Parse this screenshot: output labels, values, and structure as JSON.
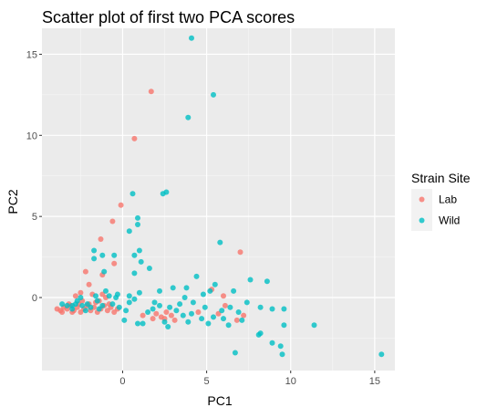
{
  "chart_data": {
    "type": "scatter",
    "title": "Scatter plot of first two PCA scores",
    "xlabel": "PC1",
    "ylabel": "PC2",
    "xlim": [
      -4.8,
      16.2
    ],
    "ylim": [
      -4.5,
      16.6
    ],
    "x_ticks": [
      0,
      5,
      10,
      15
    ],
    "x_tick_labels": [
      "0",
      "5",
      "10",
      "15"
    ],
    "y_ticks": [
      0,
      5,
      10,
      15
    ],
    "y_tick_labels": [
      "0",
      "5",
      "10",
      "15"
    ],
    "grid": true,
    "legend": {
      "title": "Strain Site",
      "placement": "right"
    },
    "series": [
      {
        "name": "Lab",
        "color": "#F8766D",
        "points": [
          [
            1.7,
            12.7
          ],
          [
            0.7,
            9.8
          ],
          [
            -0.1,
            5.7
          ],
          [
            -0.6,
            4.7
          ],
          [
            -1.3,
            3.6
          ],
          [
            -0.5,
            2.1
          ],
          [
            -1.2,
            1.4
          ],
          [
            -2.2,
            1.6
          ],
          [
            7.0,
            2.8
          ],
          [
            5.3,
            0.5
          ],
          [
            6.0,
            0.1
          ],
          [
            -2.0,
            0.8
          ],
          [
            -2.5,
            0.3
          ],
          [
            -1.8,
            0.2
          ],
          [
            -1.0,
            0.0
          ],
          [
            -3.9,
            -0.7
          ],
          [
            -3.7,
            -0.8
          ],
          [
            -3.5,
            -0.6
          ],
          [
            -3.3,
            -0.7
          ],
          [
            -3.1,
            -0.5
          ],
          [
            -2.9,
            -0.8
          ],
          [
            -2.7,
            -0.6
          ],
          [
            -2.5,
            -0.9
          ],
          [
            -2.3,
            -0.7
          ],
          [
            -2.1,
            -0.5
          ],
          [
            -1.9,
            -0.8
          ],
          [
            -1.7,
            -0.6
          ],
          [
            -1.5,
            -0.9
          ],
          [
            -1.3,
            -0.7
          ],
          [
            -1.1,
            -0.5
          ],
          [
            -0.9,
            -0.8
          ],
          [
            -0.7,
            -0.6
          ],
          [
            -0.5,
            -0.9
          ],
          [
            -0.3,
            -0.7
          ],
          [
            -3.6,
            -0.9
          ],
          [
            -3.0,
            -0.9
          ],
          [
            -2.6,
            -0.4
          ],
          [
            -2.0,
            -0.4
          ],
          [
            -1.6,
            -0.3
          ],
          [
            -0.8,
            -0.4
          ],
          [
            -3.2,
            -0.4
          ],
          [
            -2.4,
            -0.2
          ],
          [
            -1.4,
            -0.2
          ],
          [
            -2.8,
            0.1
          ],
          [
            -1.2,
            0.2
          ],
          [
            2.0,
            -1.0
          ],
          [
            2.3,
            -1.2
          ],
          [
            2.6,
            -0.9
          ],
          [
            2.9,
            -1.1
          ],
          [
            1.8,
            -1.3
          ],
          [
            5.7,
            -1.0
          ],
          [
            6.1,
            -0.5
          ],
          [
            7.2,
            -1.1
          ],
          [
            6.8,
            -1.4
          ],
          [
            1.2,
            -1.1
          ],
          [
            2.5,
            -1.3
          ],
          [
            4.5,
            -0.9
          ],
          [
            3.1,
            -1.4
          ]
        ]
      },
      {
        "name": "Wild",
        "color": "#00BFC4",
        "points": [
          [
            4.1,
            16.0
          ],
          [
            5.4,
            12.5
          ],
          [
            3.9,
            11.1
          ],
          [
            2.6,
            6.5
          ],
          [
            2.4,
            6.4
          ],
          [
            0.6,
            6.4
          ],
          [
            0.9,
            4.9
          ],
          [
            0.9,
            4.5
          ],
          [
            0.4,
            4.1
          ],
          [
            5.8,
            3.4
          ],
          [
            -1.7,
            2.9
          ],
          [
            1.0,
            2.9
          ],
          [
            -1.2,
            2.6
          ],
          [
            -1.7,
            2.4
          ],
          [
            -0.5,
            2.6
          ],
          [
            0.7,
            2.6
          ],
          [
            1.1,
            2.2
          ],
          [
            1.6,
            1.8
          ],
          [
            -1.1,
            1.6
          ],
          [
            0.7,
            1.5
          ],
          [
            1.0,
            0.3
          ],
          [
            2.2,
            0.4
          ],
          [
            3.0,
            0.6
          ],
          [
            3.8,
            0.6
          ],
          [
            4.4,
            1.3
          ],
          [
            4.8,
            0.2
          ],
          [
            5.2,
            0.4
          ],
          [
            5.5,
            0.8
          ],
          [
            6.6,
            0.4
          ],
          [
            7.6,
            1.1
          ],
          [
            8.6,
            1.0
          ],
          [
            8.9,
            -0.7
          ],
          [
            8.2,
            -0.6
          ],
          [
            9.6,
            -0.7
          ],
          [
            6.4,
            -0.6
          ],
          [
            6.9,
            -0.9
          ],
          [
            7.1,
            -1.4
          ],
          [
            8.2,
            -2.2
          ],
          [
            8.9,
            -2.8
          ],
          [
            9.4,
            -3.0
          ],
          [
            9.5,
            -3.5
          ],
          [
            8.1,
            -2.3
          ],
          [
            9.6,
            -1.7
          ],
          [
            11.4,
            -1.7
          ],
          [
            15.4,
            -3.5
          ],
          [
            6.7,
            -3.4
          ],
          [
            5.4,
            -1.2
          ],
          [
            6.3,
            -1.7
          ],
          [
            4.7,
            -1.3
          ],
          [
            4.1,
            -1.0
          ],
          [
            3.6,
            -1.1
          ],
          [
            3.4,
            -0.4
          ],
          [
            2.8,
            -0.6
          ],
          [
            1.5,
            -0.9
          ],
          [
            0.9,
            -1.6
          ],
          [
            1.2,
            -1.6
          ],
          [
            2.7,
            -1.8
          ],
          [
            2.5,
            -1.5
          ],
          [
            0.1,
            -1.4
          ],
          [
            -0.2,
            -0.6
          ],
          [
            0.4,
            -0.3
          ],
          [
            0.7,
            -0.1
          ],
          [
            0.4,
            0.1
          ],
          [
            -0.6,
            -0.4
          ],
          [
            -1.2,
            -0.5
          ],
          [
            -1.5,
            -0.2
          ],
          [
            -1.9,
            -0.6
          ],
          [
            -2.1,
            -0.4
          ],
          [
            -2.4,
            -0.5
          ],
          [
            -2.8,
            -0.4
          ],
          [
            -3.0,
            -0.5
          ],
          [
            -3.3,
            -0.5
          ],
          [
            -3.6,
            -0.4
          ],
          [
            -2.7,
            -0.2
          ],
          [
            -2.5,
            0.0
          ],
          [
            -1.6,
            0.1
          ],
          [
            -1.4,
            -0.7
          ],
          [
            -2.2,
            -0.8
          ],
          [
            -3.0,
            -0.7
          ],
          [
            -0.8,
            0.1
          ],
          [
            -1.0,
            0.4
          ],
          [
            -0.3,
            0.2
          ],
          [
            1.9,
            -0.3
          ],
          [
            2.2,
            -0.5
          ],
          [
            3.2,
            -0.8
          ],
          [
            4.9,
            -0.6
          ],
          [
            5.9,
            -0.8
          ],
          [
            7.4,
            -0.3
          ],
          [
            6.0,
            -1.3
          ],
          [
            3.9,
            -1.5
          ],
          [
            5.1,
            -1.6
          ],
          [
            1.8,
            -0.7
          ],
          [
            0.2,
            -0.8
          ],
          [
            -0.4,
            0.0
          ],
          [
            4.2,
            -0.3
          ],
          [
            3.7,
            0.0
          ]
        ]
      }
    ]
  }
}
